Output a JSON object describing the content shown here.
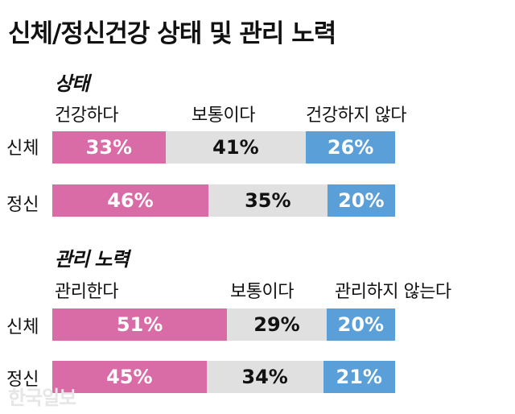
{
  "title": "신체/정신건강 상태 및 관리 노력",
  "watermark": "한국일보",
  "colors": {
    "positive": "#d96ba6",
    "neutral": "#e0e0e0",
    "negative": "#5b9fd8"
  },
  "chart_data": [
    {
      "type": "bar",
      "stacked": "100%",
      "orientation": "horizontal",
      "title": "상태",
      "categories": [
        "건강하다",
        "보통이다",
        "건강하지 않다"
      ],
      "rows": [
        {
          "label": "신체",
          "values": [
            33,
            41,
            26
          ],
          "labels": [
            "33%",
            "41%",
            "26%"
          ]
        },
        {
          "label": "정신",
          "values": [
            46,
            35,
            20
          ],
          "labels": [
            "46%",
            "35%",
            "20%"
          ]
        }
      ]
    },
    {
      "type": "bar",
      "stacked": "100%",
      "orientation": "horizontal",
      "title": "관리 노력",
      "categories": [
        "관리한다",
        "보통이다",
        "관리하지 않는다"
      ],
      "rows": [
        {
          "label": "신체",
          "values": [
            51,
            29,
            20
          ],
          "labels": [
            "51%",
            "29%",
            "20%"
          ]
        },
        {
          "label": "정신",
          "values": [
            45,
            34,
            21
          ],
          "labels": [
            "45%",
            "34%",
            "21%"
          ]
        }
      ]
    }
  ]
}
